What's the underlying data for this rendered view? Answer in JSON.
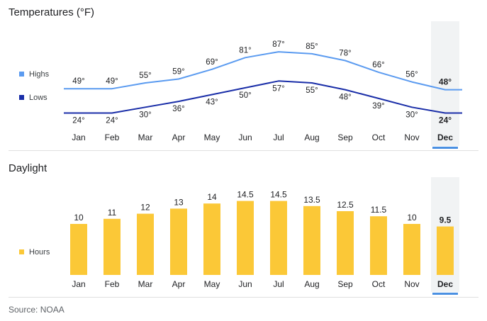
{
  "header": {
    "temperatures_title": "Temperatures (°F)",
    "daylight_title": "Daylight",
    "source": "Source: NOAA"
  },
  "selected_month": "Dec",
  "colors": {
    "highs": "#5b9bf0",
    "lows": "#1a2ea8",
    "daylight": "#fbc837",
    "selected_highlight": "#f1f3f4",
    "selected_underline": "#4a90e2"
  },
  "chart_data": [
    {
      "type": "line",
      "title": "Temperatures (°F)",
      "categories": [
        "Jan",
        "Feb",
        "Mar",
        "Apr",
        "May",
        "Jun",
        "Jul",
        "Aug",
        "Sep",
        "Oct",
        "Nov",
        "Dec"
      ],
      "series": [
        {
          "name": "Highs",
          "values": [
            49,
            49,
            55,
            59,
            69,
            81,
            87,
            85,
            78,
            66,
            56,
            48
          ]
        },
        {
          "name": "Lows",
          "values": [
            24,
            24,
            30,
            36,
            43,
            50,
            57,
            55,
            48,
            39,
            30,
            24
          ]
        }
      ],
      "value_suffix": "°",
      "legend_position": "left"
    },
    {
      "type": "bar",
      "title": "Daylight",
      "categories": [
        "Jan",
        "Feb",
        "Mar",
        "Apr",
        "May",
        "Jun",
        "Jul",
        "Aug",
        "Sep",
        "Oct",
        "Nov",
        "Dec"
      ],
      "series": [
        {
          "name": "Hours",
          "values": [
            10,
            11,
            12,
            13,
            14,
            14.5,
            14.5,
            13.5,
            12.5,
            11.5,
            10,
            9.5
          ]
        }
      ],
      "legend_position": "left"
    }
  ]
}
